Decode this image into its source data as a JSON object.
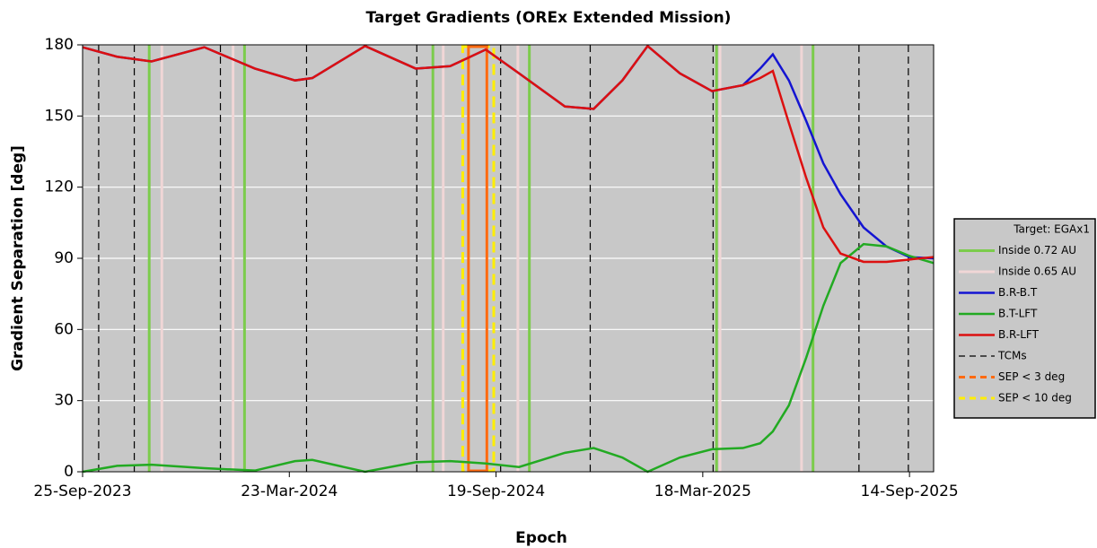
{
  "chart_data": {
    "type": "line",
    "title": "Target Gradients (OREx Extended Mission)",
    "xlabel": "Epoch",
    "ylabel": "Gradient Separation [deg]",
    "legend_title": "Target: EGAx1",
    "x": [
      "2023-09-25",
      "2023-10-25",
      "2023-11-24",
      "2024-01-09",
      "2024-02-22",
      "2024-03-28",
      "2024-04-12",
      "2024-05-28",
      "2024-07-11",
      "2024-08-10",
      "2024-09-10",
      "2024-10-09",
      "2024-11-18",
      "2024-12-13",
      "2025-01-07",
      "2025-01-29",
      "2025-02-26",
      "2025-03-26",
      "2025-04-22",
      "2025-05-07",
      "2025-05-18",
      "2025-06-01",
      "2025-06-16",
      "2025-07-01",
      "2025-07-16",
      "2025-08-05",
      "2025-08-25",
      "2025-09-14",
      "2025-10-05"
    ],
    "series": [
      {
        "name": "B.R-B.T",
        "color": "#1414d2",
        "values": [
          179,
          175,
          173,
          179,
          170,
          165,
          166,
          179.5,
          170,
          171,
          178,
          168,
          154,
          153,
          165,
          179.5,
          168,
          160.5,
          163,
          170,
          176,
          165,
          148,
          130,
          117,
          103,
          95,
          90.5,
          90
        ]
      },
      {
        "name": "B.T-LFT",
        "color": "#22aa22",
        "values": [
          0,
          2.5,
          3,
          1.5,
          0.5,
          4.5,
          5,
          0,
          4,
          4.5,
          3.5,
          2,
          8,
          10,
          6,
          0,
          6,
          9.5,
          10,
          12,
          17,
          28,
          48,
          70,
          88,
          96,
          95,
          91,
          88
        ]
      },
      {
        "name": "B.R-LFT",
        "color": "#dc1010",
        "values": [
          179,
          175,
          173,
          179,
          170,
          165,
          166,
          179.5,
          170,
          171,
          178,
          168,
          154,
          153,
          165,
          179.5,
          168,
          160.5,
          163,
          166,
          169,
          147,
          124,
          103,
          92,
          88.5,
          88.5,
          89.5,
          90.5
        ]
      }
    ],
    "markers": [
      {
        "name": "Inside 0.72 AU",
        "color": "#7ccc4c",
        "dash": false,
        "dates": [
          "2023-11-22",
          "2024-02-13",
          "2024-07-26",
          "2024-10-18",
          "2025-03-30",
          "2025-06-22"
        ]
      },
      {
        "name": "Inside 0.65 AU",
        "color": "#f0d6d6",
        "dash": false,
        "dates": [
          "2023-12-03",
          "2024-02-03",
          "2024-08-04",
          "2024-10-08",
          "2025-04-02",
          "2025-06-12"
        ]
      },
      {
        "name": "TCMs",
        "color": "#000000",
        "dash": true,
        "dates": [
          "2023-10-09",
          "2023-11-09",
          "2024-01-23",
          "2024-04-07",
          "2024-07-12",
          "2024-09-23",
          "2024-12-10",
          "2025-03-27",
          "2025-08-01",
          "2025-09-13"
        ]
      }
    ],
    "windows": [
      {
        "name": "SEP < 3 deg",
        "color": "#ff6a10",
        "start": "2024-08-26",
        "end": "2024-09-11"
      },
      {
        "name": "SEP < 10 deg",
        "color": "#ffee00",
        "start": "2024-08-21",
        "end": "2024-09-17"
      }
    ],
    "xlim": [
      "2023-09-25",
      "2025-10-05"
    ],
    "xticks": [
      {
        "value": "2023-09-25",
        "label": "25-Sep-2023"
      },
      {
        "value": "2024-03-23",
        "label": "23-Mar-2024"
      },
      {
        "value": "2024-09-19",
        "label": "19-Sep-2024"
      },
      {
        "value": "2025-03-18",
        "label": "18-Mar-2025"
      },
      {
        "value": "2025-09-14",
        "label": "14-Sep-2025"
      }
    ],
    "ylim": [
      0,
      180
    ],
    "yticks": [
      0,
      30,
      60,
      90,
      120,
      150,
      180
    ],
    "grid": true
  }
}
